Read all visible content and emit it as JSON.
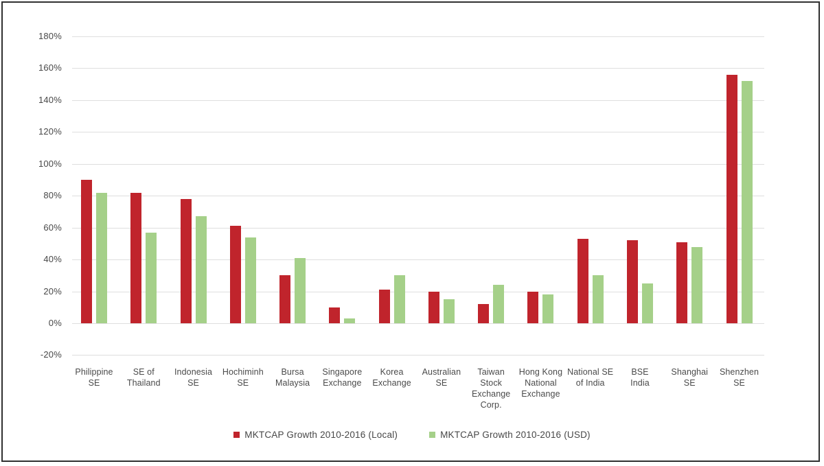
{
  "chart_data": {
    "type": "bar",
    "title": "",
    "xlabel": "",
    "ylabel": "",
    "categories": [
      "Philippine\nSE",
      "SE of\nThailand",
      "Indonesia\nSE",
      "Hochiminh\nSE",
      "Bursa\nMalaysia",
      "Singapore\nExchange",
      "Korea\nExchange",
      "Australian\nSE",
      "Taiwan\nStock\nExchange\nCorp.",
      "Hong Kong\nNational\nExchange",
      "National SE\nof India",
      "BSE\nIndia",
      "Shanghai\nSE",
      "Shenzhen\nSE"
    ],
    "series": [
      {
        "name": "MKTCAP Growth 2010-2016 (Local)",
        "color": "#c0242c",
        "values": [
          90,
          82,
          78,
          61,
          30,
          10,
          21,
          20,
          12,
          20,
          53,
          52,
          51,
          156
        ]
      },
      {
        "name": "MKTCAP Growth 2010-2016 (USD)",
        "color": "#a5d089",
        "values": [
          82,
          57,
          67,
          54,
          41,
          3,
          30,
          15,
          24,
          18,
          30,
          25,
          48,
          152
        ]
      }
    ],
    "ylim": [
      -20,
      180
    ],
    "ytick_step": 20,
    "ytick_suffix": "%",
    "grid": true,
    "legend_position": "bottom"
  },
  "colors": {
    "grid": "#dedede",
    "axis_text": "#474747",
    "frame_border": "#2f2f2f",
    "background": "#ffffff"
  }
}
